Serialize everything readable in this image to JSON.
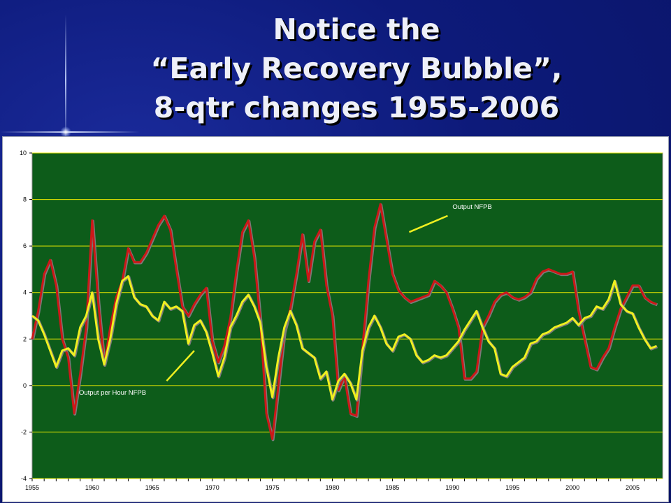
{
  "slide": {
    "title_line1": "Notice the",
    "title_line2": "“Early Recovery Bubble”,",
    "title_line3": "8-qtr changes 1955-2006"
  },
  "colors": {
    "background": "#0d1a7a",
    "plot_area": "#0d5c1a",
    "gridline": "#e8e800",
    "output_line": "#cc1818",
    "productivity_line": "#f0f020"
  },
  "chart_data": {
    "type": "line",
    "title": "",
    "xlabel": "",
    "ylabel": "",
    "ylim": [
      -4,
      10
    ],
    "yticks": [
      -4,
      -2,
      0,
      2,
      4,
      6,
      8,
      10
    ],
    "xlim": [
      1955,
      2007.5
    ],
    "xticks": [
      1955,
      1960,
      1965,
      1970,
      1975,
      1980,
      1985,
      1990,
      1995,
      2000,
      2005
    ],
    "grid": true,
    "annotations": [
      {
        "text": "Output  NFPB",
        "series": "output"
      },
      {
        "text": "Output per Hour NFPB",
        "series": "productivity"
      }
    ],
    "series": [
      {
        "id": "output",
        "name": "Output  NFPB",
        "color": "#cc1818",
        "x": [
          1955,
          1955.5,
          1956,
          1956.5,
          1957,
          1957.5,
          1958,
          1958.5,
          1959,
          1959.5,
          1960,
          1960.5,
          1961,
          1961.5,
          1962,
          1962.5,
          1963,
          1963.5,
          1964,
          1964.5,
          1965,
          1965.5,
          1966,
          1966.5,
          1967,
          1967.5,
          1968,
          1968.5,
          1969,
          1969.5,
          1970,
          1970.5,
          1971,
          1971.5,
          1972,
          1972.5,
          1973,
          1973.5,
          1974,
          1974.5,
          1975,
          1975.5,
          1976,
          1976.5,
          1977,
          1977.5,
          1978,
          1978.5,
          1979,
          1979.5,
          1980,
          1980.5,
          1981,
          1981.5,
          1982,
          1982.5,
          1983,
          1983.5,
          1984,
          1984.5,
          1985,
          1985.5,
          1986,
          1986.5,
          1987,
          1987.5,
          1988,
          1988.5,
          1989,
          1989.5,
          1990,
          1990.5,
          1991,
          1991.5,
          1992,
          1992.5,
          1993,
          1993.5,
          1994,
          1994.5,
          1995,
          1995.5,
          1996,
          1996.5,
          1997,
          1997.5,
          1998,
          1998.5,
          1999,
          1999.5,
          2000,
          2000.5,
          2001,
          2001.5,
          2002,
          2002.5,
          2003,
          2003.5,
          2004,
          2004.5,
          2005,
          2005.5,
          2006,
          2006.5,
          2007
        ],
        "y": [
          2.0,
          3.2,
          4.8,
          5.4,
          4.3,
          2.0,
          1.2,
          -1.2,
          0.5,
          2.5,
          7.1,
          3.6,
          0.9,
          2.5,
          3.8,
          4.5,
          5.9,
          5.3,
          5.3,
          5.7,
          6.3,
          6.9,
          7.3,
          6.7,
          5.0,
          3.4,
          3.0,
          3.5,
          3.9,
          4.2,
          1.9,
          1.0,
          1.7,
          2.9,
          4.9,
          6.6,
          7.1,
          5.5,
          2.8,
          -1.2,
          -2.3,
          0.0,
          2.3,
          3.3,
          4.8,
          6.5,
          4.5,
          6.2,
          6.7,
          4.3,
          3.0,
          -0.2,
          0.4,
          -1.2,
          -1.3,
          1.6,
          4.5,
          6.8,
          7.8,
          6.3,
          4.8,
          4.1,
          3.8,
          3.6,
          3.7,
          3.8,
          3.9,
          4.5,
          4.3,
          4.0,
          3.3,
          2.5,
          0.3,
          0.3,
          0.6,
          2.5,
          3.0,
          3.6,
          3.9,
          4.0,
          3.8,
          3.7,
          3.8,
          4.0,
          4.6,
          4.9,
          5.0,
          4.9,
          4.8,
          4.8,
          4.9,
          3.2,
          2.0,
          0.8,
          0.7,
          1.2,
          1.6,
          2.5,
          3.3,
          3.8,
          4.3,
          4.3,
          3.8,
          3.6,
          3.5
        ],
        "shadow_offset": 1
      },
      {
        "id": "productivity",
        "name": "Output per Hour NFPB",
        "color": "#f0f020",
        "x": [
          1955,
          1955.5,
          1956,
          1956.5,
          1957,
          1957.5,
          1958,
          1958.5,
          1959,
          1959.5,
          1960,
          1960.5,
          1961,
          1961.5,
          1962,
          1962.5,
          1963,
          1963.5,
          1964,
          1964.5,
          1965,
          1965.5,
          1966,
          1966.5,
          1967,
          1967.5,
          1968,
          1968.5,
          1969,
          1969.5,
          1970,
          1970.5,
          1971,
          1971.5,
          1972,
          1972.5,
          1973,
          1973.5,
          1974,
          1974.5,
          1975,
          1975.5,
          1976,
          1976.5,
          1977,
          1977.5,
          1978,
          1978.5,
          1979,
          1979.5,
          1980,
          1980.5,
          1981,
          1981.5,
          1982,
          1982.5,
          1983,
          1983.5,
          1984,
          1984.5,
          1985,
          1985.5,
          1986,
          1986.5,
          1987,
          1987.5,
          1988,
          1988.5,
          1989,
          1989.5,
          1990,
          1990.5,
          1991,
          1991.5,
          1992,
          1992.5,
          1993,
          1993.5,
          1994,
          1994.5,
          1995,
          1995.5,
          1996,
          1996.5,
          1997,
          1997.5,
          1998,
          1998.5,
          1999,
          1999.5,
          2000,
          2000.5,
          2001,
          2001.5,
          2002,
          2002.5,
          2003,
          2003.5,
          2004,
          2004.5,
          2005,
          2005.5,
          2006,
          2006.5,
          2007
        ],
        "y": [
          3.0,
          2.8,
          2.2,
          1.5,
          0.8,
          1.5,
          1.6,
          1.3,
          2.5,
          3.0,
          4.0,
          2.0,
          0.9,
          2.0,
          3.5,
          4.5,
          4.7,
          3.8,
          3.5,
          3.4,
          3.0,
          2.8,
          3.6,
          3.3,
          3.4,
          3.2,
          1.8,
          2.6,
          2.8,
          2.3,
          1.4,
          0.4,
          1.2,
          2.5,
          3.0,
          3.6,
          3.9,
          3.4,
          2.7,
          0.8,
          -0.5,
          1.2,
          2.5,
          3.2,
          2.6,
          1.6,
          1.4,
          1.2,
          0.3,
          0.6,
          -0.6,
          0.2,
          0.5,
          0.1,
          -0.6,
          1.5,
          2.5,
          3.0,
          2.5,
          1.8,
          1.5,
          2.1,
          2.2,
          2.0,
          1.3,
          1.0,
          1.1,
          1.3,
          1.2,
          1.3,
          1.6,
          1.9,
          2.4,
          2.8,
          3.2,
          2.5,
          1.9,
          1.6,
          0.5,
          0.4,
          0.8,
          1.0,
          1.2,
          1.8,
          1.9,
          2.2,
          2.3,
          2.5,
          2.6,
          2.7,
          2.9,
          2.6,
          2.9,
          3.0,
          3.4,
          3.3,
          3.7,
          4.5,
          3.5,
          3.2,
          3.1,
          2.5,
          2.0,
          1.6,
          1.7
        ],
        "shadow_offset": 1
      }
    ]
  }
}
